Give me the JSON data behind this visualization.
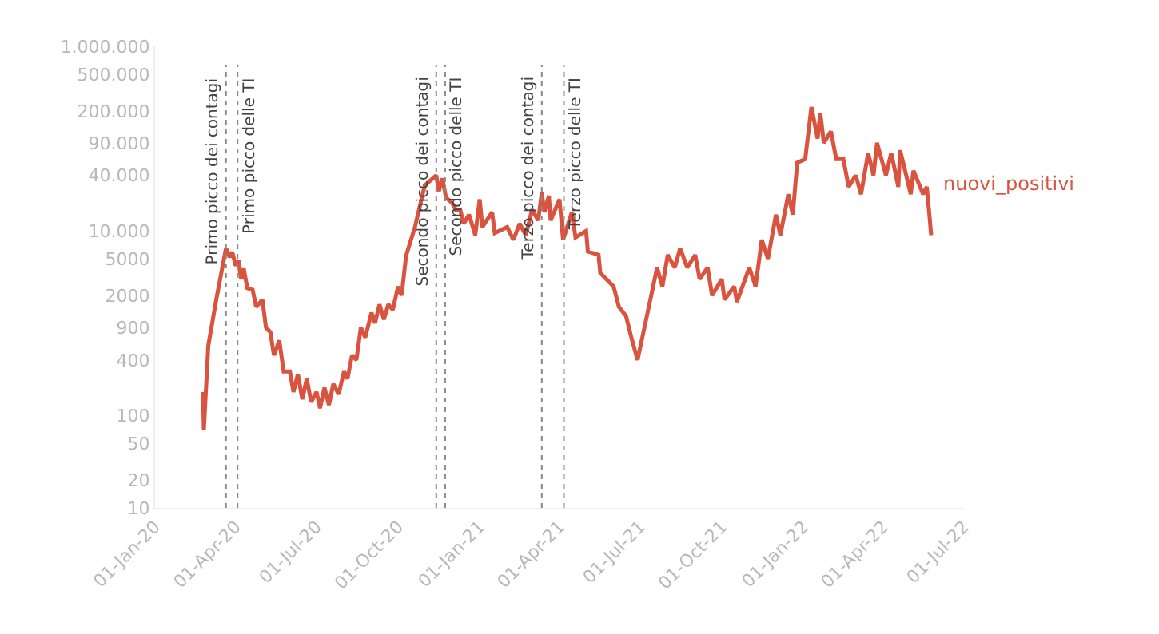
{
  "chart_data": {
    "type": "line",
    "log": "y",
    "legend": false,
    "marker": "none",
    "line_style": "solid",
    "x": [
      "2020-02-24",
      "2020-02-25",
      "2020-03-01",
      "2020-03-10",
      "2020-03-21",
      "2020-03-25",
      "2020-03-28",
      "2020-04-01",
      "2020-04-04",
      "2020-04-07",
      "2020-04-10",
      "2020-04-14",
      "2020-04-20",
      "2020-04-24",
      "2020-05-01",
      "2020-05-05",
      "2020-05-10",
      "2020-05-14",
      "2020-05-20",
      "2020-05-25",
      "2020-06-01",
      "2020-06-05",
      "2020-06-10",
      "2020-06-15",
      "2020-06-20",
      "2020-06-25",
      "2020-07-01",
      "2020-07-05",
      "2020-07-10",
      "2020-07-15",
      "2020-07-20",
      "2020-07-26",
      "2020-08-01",
      "2020-08-05",
      "2020-08-10",
      "2020-08-15",
      "2020-08-20",
      "2020-08-25",
      "2020-09-01",
      "2020-09-05",
      "2020-09-10",
      "2020-09-15",
      "2020-09-20",
      "2020-09-25",
      "2020-10-01",
      "2020-10-05",
      "2020-10-10",
      "2020-10-20",
      "2020-10-31",
      "2020-11-13",
      "2020-11-16",
      "2020-11-20",
      "2020-11-24",
      "2020-12-01",
      "2020-12-05",
      "2020-12-10",
      "2020-12-14",
      "2020-12-20",
      "2020-12-27",
      "2021-01-01",
      "2021-01-04",
      "2021-01-15",
      "2021-01-18",
      "2021-02-01",
      "2021-02-08",
      "2021-02-15",
      "2021-02-22",
      "2021-03-01",
      "2021-03-08",
      "2021-03-12",
      "2021-03-15",
      "2021-03-20",
      "2021-03-22",
      "2021-04-01",
      "2021-04-05",
      "2021-04-15",
      "2021-04-19",
      "2021-05-01",
      "2021-05-03",
      "2021-05-15",
      "2021-05-17",
      "2021-06-01",
      "2021-06-07",
      "2021-06-15",
      "2021-06-21",
      "2021-06-28",
      "2021-07-10",
      "2021-07-20",
      "2021-07-26",
      "2021-08-01",
      "2021-08-09",
      "2021-08-15",
      "2021-08-23",
      "2021-09-01",
      "2021-09-06",
      "2021-09-15",
      "2021-09-20",
      "2021-10-01",
      "2021-10-04",
      "2021-10-15",
      "2021-10-18",
      "2021-11-01",
      "2021-11-08",
      "2021-11-15",
      "2021-11-22",
      "2021-12-01",
      "2021-12-06",
      "2021-12-15",
      "2021-12-20",
      "2021-12-25",
      "2022-01-03",
      "2022-01-10",
      "2022-01-17",
      "2022-01-20",
      "2022-01-24",
      "2022-02-01",
      "2022-02-07",
      "2022-02-15",
      "2022-02-21",
      "2022-03-01",
      "2022-03-07",
      "2022-03-15",
      "2022-03-21",
      "2022-03-25",
      "2022-04-04",
      "2022-04-10",
      "2022-04-18",
      "2022-04-20",
      "2022-05-02",
      "2022-05-05",
      "2022-05-16",
      "2022-05-20",
      "2022-05-23",
      "2022-05-25"
    ],
    "series": [
      {
        "name": "nuovi_positivi",
        "color": "#d9533f",
        "values": [
          180,
          70,
          570,
          1800,
          6500,
          5200,
          5900,
          4200,
          4800,
          3000,
          3900,
          2400,
          2300,
          1500,
          1800,
          900,
          800,
          450,
          650,
          300,
          300,
          180,
          280,
          150,
          250,
          140,
          180,
          120,
          200,
          130,
          220,
          170,
          300,
          250,
          450,
          400,
          900,
          700,
          1300,
          1000,
          1600,
          1100,
          1600,
          1400,
          2500,
          2000,
          5400,
          11000,
          31000,
          40000,
          27000,
          37000,
          23000,
          20000,
          17000,
          17000,
          12000,
          15000,
          9000,
          22000,
          11000,
          16000,
          9500,
          11000,
          8000,
          12000,
          9000,
          17000,
          13000,
          26000,
          16000,
          24000,
          13000,
          22000,
          8000,
          16000,
          8500,
          10000,
          6000,
          5500,
          3500,
          2500,
          1500,
          1200,
          700,
          400,
          1400,
          4000,
          2500,
          5500,
          4000,
          6500,
          4000,
          5500,
          3000,
          4000,
          2000,
          3000,
          1800,
          2500,
          1700,
          4000,
          2500,
          8000,
          5000,
          15000,
          9000,
          25000,
          15000,
          55000,
          60000,
          220000,
          100000,
          190000,
          90000,
          120000,
          60000,
          60000,
          30000,
          40000,
          25000,
          70000,
          40000,
          90000,
          40000,
          70000,
          30000,
          75000,
          25000,
          45000,
          25000,
          30000,
          15000,
          9000
        ]
      }
    ],
    "ylim": [
      10,
      1000000
    ],
    "yticks": [
      10,
      20,
      50,
      100,
      400,
      900,
      2000,
      5000,
      {
        "value": 10000,
        "label": "10.000"
      },
      {
        "value": 40000,
        "label": "40.000"
      },
      {
        "value": 90000,
        "label": "90.000"
      },
      {
        "value": 200000,
        "label": "200.000"
      },
      {
        "value": 500000,
        "label": "500.000"
      },
      {
        "value": 1000000,
        "label": "1.000.000"
      }
    ],
    "xlim": [
      "2020-01-01",
      "2022-07-01"
    ],
    "xticks": [
      {
        "value": "2020-01-01",
        "label": "01-Jan-20"
      },
      {
        "value": "2020-04-01",
        "label": "01-Apr-20"
      },
      {
        "value": "2020-07-01",
        "label": "01-Jul-20"
      },
      {
        "value": "2020-10-01",
        "label": "01-Oct-20"
      },
      {
        "value": "2021-01-01",
        "label": "01-Jan-21"
      },
      {
        "value": "2021-04-01",
        "label": "01-Apr-21"
      },
      {
        "value": "2021-07-01",
        "label": "01-Jul-21"
      },
      {
        "value": "2021-10-01",
        "label": "01-Oct-21"
      },
      {
        "value": "2022-01-01",
        "label": "01-Jan-22"
      },
      {
        "value": "2022-04-01",
        "label": "01-Apr-22"
      },
      {
        "value": "2022-07-01",
        "label": "01-Jul-22"
      }
    ],
    "ref_lines": [
      {
        "axis": "x",
        "value": "2020-03-21",
        "label": "Primo picco dei contagi",
        "color": "#888888",
        "line_style": "dotted"
      },
      {
        "axis": "x",
        "value": "2020-04-03",
        "label": "Primo picco delle TI",
        "color": "#888888",
        "line_style": "dotted"
      },
      {
        "axis": "x",
        "value": "2020-11-13",
        "label": "Secondo picco dei contagi",
        "color": "#888888",
        "line_style": "dotted"
      },
      {
        "axis": "x",
        "value": "2020-11-23",
        "label": "Secondo picco delle TI",
        "color": "#888888",
        "line_style": "dotted"
      },
      {
        "axis": "x",
        "value": "2021-03-12",
        "label": "Terzo picco dei contagi",
        "color": "#888888",
        "line_style": "dotted"
      },
      {
        "axis": "x",
        "value": "2021-04-06",
        "label": "Terzo picco delle TI",
        "color": "#888888",
        "line_style": "dotted"
      }
    ]
  }
}
